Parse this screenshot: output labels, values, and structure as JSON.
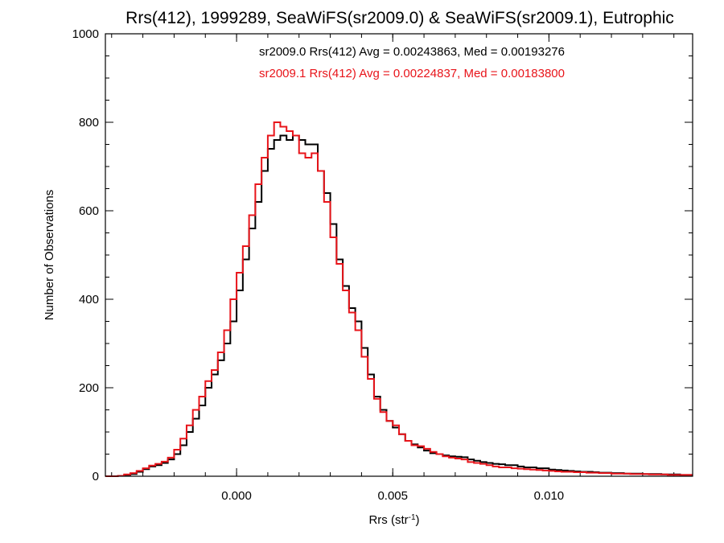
{
  "chart_data": {
    "type": "line",
    "step": true,
    "title": "Rrs(412), 1999289, SeaWiFS(sr2009.0) & SeaWiFS(sr2009.1), Eutrophic",
    "xlabel_main": "Rrs (str",
    "xlabel_sup": "-1",
    "xlabel_close": ")",
    "ylabel": "Number of Observations",
    "xlim": [
      -0.0042,
      0.0146
    ],
    "ylim": [
      0,
      1000
    ],
    "x_ticks": [
      0.0,
      0.005,
      0.01
    ],
    "x_tick_labels": [
      "0.000",
      "0.005",
      "0.010"
    ],
    "y_ticks": [
      0,
      200,
      400,
      600,
      800,
      1000
    ],
    "y_tick_labels": [
      "0",
      "200",
      "400",
      "600",
      "800",
      "1000"
    ],
    "x_minor_step": 0.001,
    "y_minor_step": 50,
    "grid": false,
    "colors": {
      "series1": "#000000",
      "series2": "#e8141a"
    },
    "annotations": [
      {
        "text": "sr2009.0 Rrs(412) Avg = 0.00243863, Med = 0.00193276",
        "color": "#000000"
      },
      {
        "text": "sr2009.1 Rrs(412) Avg = 0.00224837, Med = 0.00183800",
        "color": "#e8141a"
      }
    ],
    "series": [
      {
        "name": "sr2009.0",
        "color": "#000000",
        "points": [
          [
            -0.0042,
            0
          ],
          [
            -0.004,
            0
          ],
          [
            -0.0038,
            1
          ],
          [
            -0.0036,
            3
          ],
          [
            -0.0034,
            5
          ],
          [
            -0.0032,
            10
          ],
          [
            -0.003,
            16
          ],
          [
            -0.0028,
            22
          ],
          [
            -0.0026,
            25
          ],
          [
            -0.0024,
            30
          ],
          [
            -0.0022,
            38
          ],
          [
            -0.002,
            50
          ],
          [
            -0.0018,
            70
          ],
          [
            -0.0016,
            100
          ],
          [
            -0.0014,
            130
          ],
          [
            -0.0012,
            160
          ],
          [
            -0.001,
            200
          ],
          [
            -0.0008,
            230
          ],
          [
            -0.0006,
            262
          ],
          [
            -0.0004,
            300
          ],
          [
            -0.0002,
            350
          ],
          [
            0.0,
            420
          ],
          [
            0.0002,
            490
          ],
          [
            0.0004,
            560
          ],
          [
            0.0006,
            620
          ],
          [
            0.0008,
            690
          ],
          [
            0.001,
            740
          ],
          [
            0.0012,
            760
          ],
          [
            0.0014,
            770
          ],
          [
            0.0016,
            760
          ],
          [
            0.0018,
            770
          ],
          [
            0.002,
            760
          ],
          [
            0.0022,
            750
          ],
          [
            0.0024,
            750
          ],
          [
            0.0026,
            690
          ],
          [
            0.0028,
            640
          ],
          [
            0.003,
            570
          ],
          [
            0.0032,
            490
          ],
          [
            0.0034,
            430
          ],
          [
            0.0036,
            380
          ],
          [
            0.0038,
            350
          ],
          [
            0.004,
            290
          ],
          [
            0.0042,
            230
          ],
          [
            0.0044,
            180
          ],
          [
            0.0046,
            150
          ],
          [
            0.0048,
            125
          ],
          [
            0.005,
            110
          ],
          [
            0.0052,
            95
          ],
          [
            0.0054,
            80
          ],
          [
            0.0056,
            72
          ],
          [
            0.0058,
            65
          ],
          [
            0.006,
            58
          ],
          [
            0.0062,
            52
          ],
          [
            0.0064,
            50
          ],
          [
            0.0066,
            47
          ],
          [
            0.0068,
            45
          ],
          [
            0.007,
            44
          ],
          [
            0.0072,
            43
          ],
          [
            0.0074,
            38
          ],
          [
            0.0076,
            35
          ],
          [
            0.0078,
            32
          ],
          [
            0.008,
            30
          ],
          [
            0.0082,
            28
          ],
          [
            0.0084,
            27
          ],
          [
            0.0086,
            25
          ],
          [
            0.0088,
            25
          ],
          [
            0.009,
            22
          ],
          [
            0.0092,
            20
          ],
          [
            0.0094,
            20
          ],
          [
            0.0096,
            18
          ],
          [
            0.0098,
            18
          ],
          [
            0.01,
            15
          ],
          [
            0.0102,
            14
          ],
          [
            0.0104,
            13
          ],
          [
            0.0106,
            12
          ],
          [
            0.0108,
            11
          ],
          [
            0.011,
            10
          ],
          [
            0.0112,
            10
          ],
          [
            0.0114,
            9
          ],
          [
            0.0116,
            8
          ],
          [
            0.0118,
            8
          ],
          [
            0.012,
            7
          ],
          [
            0.0122,
            7
          ],
          [
            0.0124,
            6
          ],
          [
            0.0126,
            6
          ],
          [
            0.0128,
            6
          ],
          [
            0.013,
            5
          ],
          [
            0.0132,
            5
          ],
          [
            0.0134,
            5
          ],
          [
            0.0136,
            4
          ],
          [
            0.0138,
            4
          ],
          [
            0.014,
            4
          ],
          [
            0.0142,
            3
          ],
          [
            0.0144,
            3
          ]
        ]
      },
      {
        "name": "sr2009.1",
        "color": "#e8141a",
        "points": [
          [
            -0.0042,
            0
          ],
          [
            -0.004,
            0
          ],
          [
            -0.0038,
            1
          ],
          [
            -0.0036,
            4
          ],
          [
            -0.0034,
            7
          ],
          [
            -0.0032,
            12
          ],
          [
            -0.003,
            18
          ],
          [
            -0.0028,
            24
          ],
          [
            -0.0026,
            28
          ],
          [
            -0.0024,
            33
          ],
          [
            -0.0022,
            42
          ],
          [
            -0.002,
            60
          ],
          [
            -0.0018,
            85
          ],
          [
            -0.0016,
            115
          ],
          [
            -0.0014,
            150
          ],
          [
            -0.0012,
            180
          ],
          [
            -0.001,
            215
          ],
          [
            -0.0008,
            240
          ],
          [
            -0.0006,
            280
          ],
          [
            -0.0004,
            330
          ],
          [
            -0.0002,
            400
          ],
          [
            0.0,
            460
          ],
          [
            0.0002,
            520
          ],
          [
            0.0004,
            590
          ],
          [
            0.0006,
            660
          ],
          [
            0.0008,
            720
          ],
          [
            0.001,
            770
          ],
          [
            0.0012,
            800
          ],
          [
            0.0014,
            790
          ],
          [
            0.0016,
            780
          ],
          [
            0.0018,
            770
          ],
          [
            0.002,
            730
          ],
          [
            0.0022,
            720
          ],
          [
            0.0024,
            730
          ],
          [
            0.0026,
            690
          ],
          [
            0.0028,
            620
          ],
          [
            0.003,
            540
          ],
          [
            0.0032,
            480
          ],
          [
            0.0034,
            420
          ],
          [
            0.0036,
            370
          ],
          [
            0.0038,
            330
          ],
          [
            0.004,
            270
          ],
          [
            0.0042,
            220
          ],
          [
            0.0044,
            175
          ],
          [
            0.0046,
            145
          ],
          [
            0.0048,
            125
          ],
          [
            0.005,
            115
          ],
          [
            0.0052,
            95
          ],
          [
            0.0054,
            80
          ],
          [
            0.0056,
            70
          ],
          [
            0.0058,
            68
          ],
          [
            0.006,
            62
          ],
          [
            0.0062,
            55
          ],
          [
            0.0064,
            50
          ],
          [
            0.0066,
            45
          ],
          [
            0.0068,
            42
          ],
          [
            0.007,
            40
          ],
          [
            0.0072,
            38
          ],
          [
            0.0074,
            32
          ],
          [
            0.0076,
            30
          ],
          [
            0.0078,
            28
          ],
          [
            0.008,
            25
          ],
          [
            0.0082,
            22
          ],
          [
            0.0084,
            20
          ],
          [
            0.0086,
            20
          ],
          [
            0.0088,
            18
          ],
          [
            0.009,
            17
          ],
          [
            0.0092,
            16
          ],
          [
            0.0094,
            15
          ],
          [
            0.0096,
            14
          ],
          [
            0.0098,
            13
          ],
          [
            0.01,
            12
          ],
          [
            0.0102,
            11
          ],
          [
            0.0104,
            10
          ],
          [
            0.0106,
            10
          ],
          [
            0.0108,
            9
          ],
          [
            0.011,
            9
          ],
          [
            0.0112,
            8
          ],
          [
            0.0114,
            8
          ],
          [
            0.0116,
            7
          ],
          [
            0.0118,
            7
          ],
          [
            0.012,
            6
          ],
          [
            0.0122,
            6
          ],
          [
            0.0124,
            6
          ],
          [
            0.0126,
            5
          ],
          [
            0.0128,
            5
          ],
          [
            0.013,
            5
          ],
          [
            0.0132,
            4
          ],
          [
            0.0134,
            4
          ],
          [
            0.0136,
            4
          ],
          [
            0.0138,
            3
          ],
          [
            0.014,
            3
          ],
          [
            0.0142,
            3
          ],
          [
            0.0144,
            3
          ]
        ]
      }
    ]
  }
}
